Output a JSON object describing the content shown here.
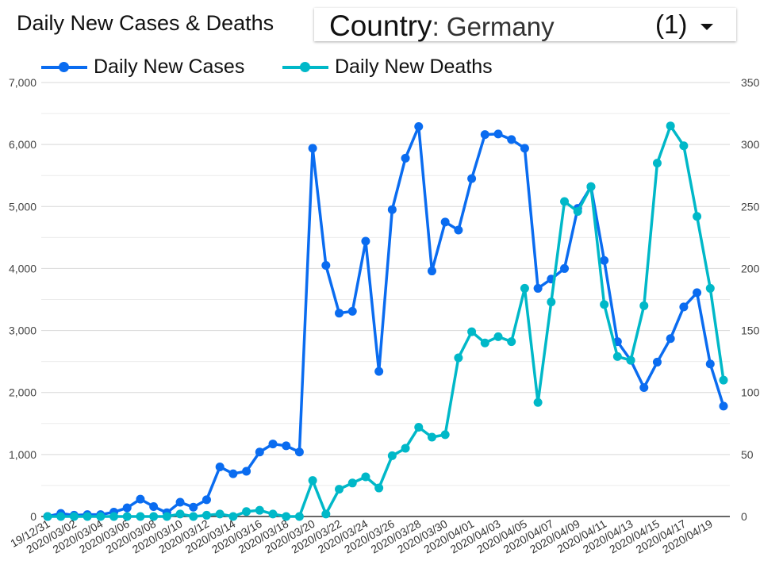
{
  "header": {
    "title": "Daily New Cases & Deaths",
    "country_label": "Country",
    "country_value": "Germany",
    "country_count": "(1)"
  },
  "chart_data": {
    "type": "line",
    "title": "Daily New Cases & Deaths",
    "x": [
      "2019/12/31",
      "2020/03/01",
      "2020/03/02",
      "2020/03/03",
      "2020/03/04",
      "2020/03/05",
      "2020/03/06",
      "2020/03/07",
      "2020/03/08",
      "2020/03/09",
      "2020/03/10",
      "2020/03/11",
      "2020/03/12",
      "2020/03/13",
      "2020/03/14",
      "2020/03/15",
      "2020/03/16",
      "2020/03/17",
      "2020/03/18",
      "2020/03/19",
      "2020/03/20",
      "2020/03/21",
      "2020/03/22",
      "2020/03/23",
      "2020/03/24",
      "2020/03/25",
      "2020/03/26",
      "2020/03/27",
      "2020/03/28",
      "2020/03/29",
      "2020/03/30",
      "2020/03/31",
      "2020/04/01",
      "2020/04/02",
      "2020/04/03",
      "2020/04/04",
      "2020/04/05",
      "2020/04/06",
      "2020/04/07",
      "2020/04/08",
      "2020/04/09",
      "2020/04/10",
      "2020/04/11",
      "2020/04/12",
      "2020/04/13",
      "2020/04/14",
      "2020/04/15",
      "2020/04/16",
      "2020/04/17",
      "2020/04/18",
      "2020/04/19",
      "2020/04/20"
    ],
    "x_tick_labels": [
      "19/12/31",
      "2020/03/02",
      "2020/03/04",
      "2020/03/06",
      "2020/03/08",
      "2020/03/10",
      "2020/03/12",
      "2020/03/14",
      "2020/03/16",
      "2020/03/18",
      "2020/03/20",
      "2020/03/22",
      "2020/03/24",
      "2020/03/26",
      "2020/03/28",
      "2020/03/30",
      "2020/04/01",
      "2020/04/03",
      "2020/04/05",
      "2020/04/07",
      "2020/04/09",
      "2020/04/11",
      "2020/04/13",
      "2020/04/15",
      "2020/04/17",
      "2020/04/19"
    ],
    "series": [
      {
        "name": "Daily New Cases",
        "axis": "left",
        "color": "#0a6cf0",
        "values": [
          0,
          50,
          20,
          30,
          30,
          70,
          140,
          280,
          160,
          60,
          230,
          150,
          270,
          800,
          690,
          730,
          1040,
          1170,
          1140,
          1040,
          5940,
          4050,
          3280,
          3310,
          4440,
          2340,
          4950,
          5780,
          6290,
          3960,
          4750,
          4620,
          5450,
          6160,
          6170,
          6080,
          5940,
          3680,
          3830,
          4000,
          4970,
          5320,
          4130,
          2820,
          2520,
          2080,
          2490,
          2870,
          3380,
          3610,
          2460,
          1780
        ]
      },
      {
        "name": "Daily New Deaths",
        "axis": "right",
        "color": "#00b8c8",
        "values": [
          0,
          0,
          0,
          0,
          0,
          0,
          0,
          0,
          0,
          0,
          2,
          0,
          1,
          2,
          0,
          4,
          5,
          2,
          0,
          0,
          29,
          2,
          22,
          27,
          32,
          23,
          49,
          55,
          72,
          64,
          66,
          128,
          149,
          140,
          145,
          141,
          184,
          92,
          173,
          254,
          246,
          266,
          171,
          129,
          126,
          170,
          285,
          315,
          299,
          242,
          184,
          110
        ]
      }
    ],
    "left_axis": {
      "ylim": [
        0,
        7000
      ],
      "ticks": [
        "0",
        "1,000",
        "2,000",
        "3,000",
        "4,000",
        "5,000",
        "6,000",
        "7,000"
      ]
    },
    "right_axis": {
      "ylim": [
        0,
        350
      ],
      "ticks": [
        "0",
        "50",
        "100",
        "150",
        "200",
        "250",
        "300",
        "350"
      ]
    },
    "grid": true,
    "legend_position": "top-left"
  }
}
